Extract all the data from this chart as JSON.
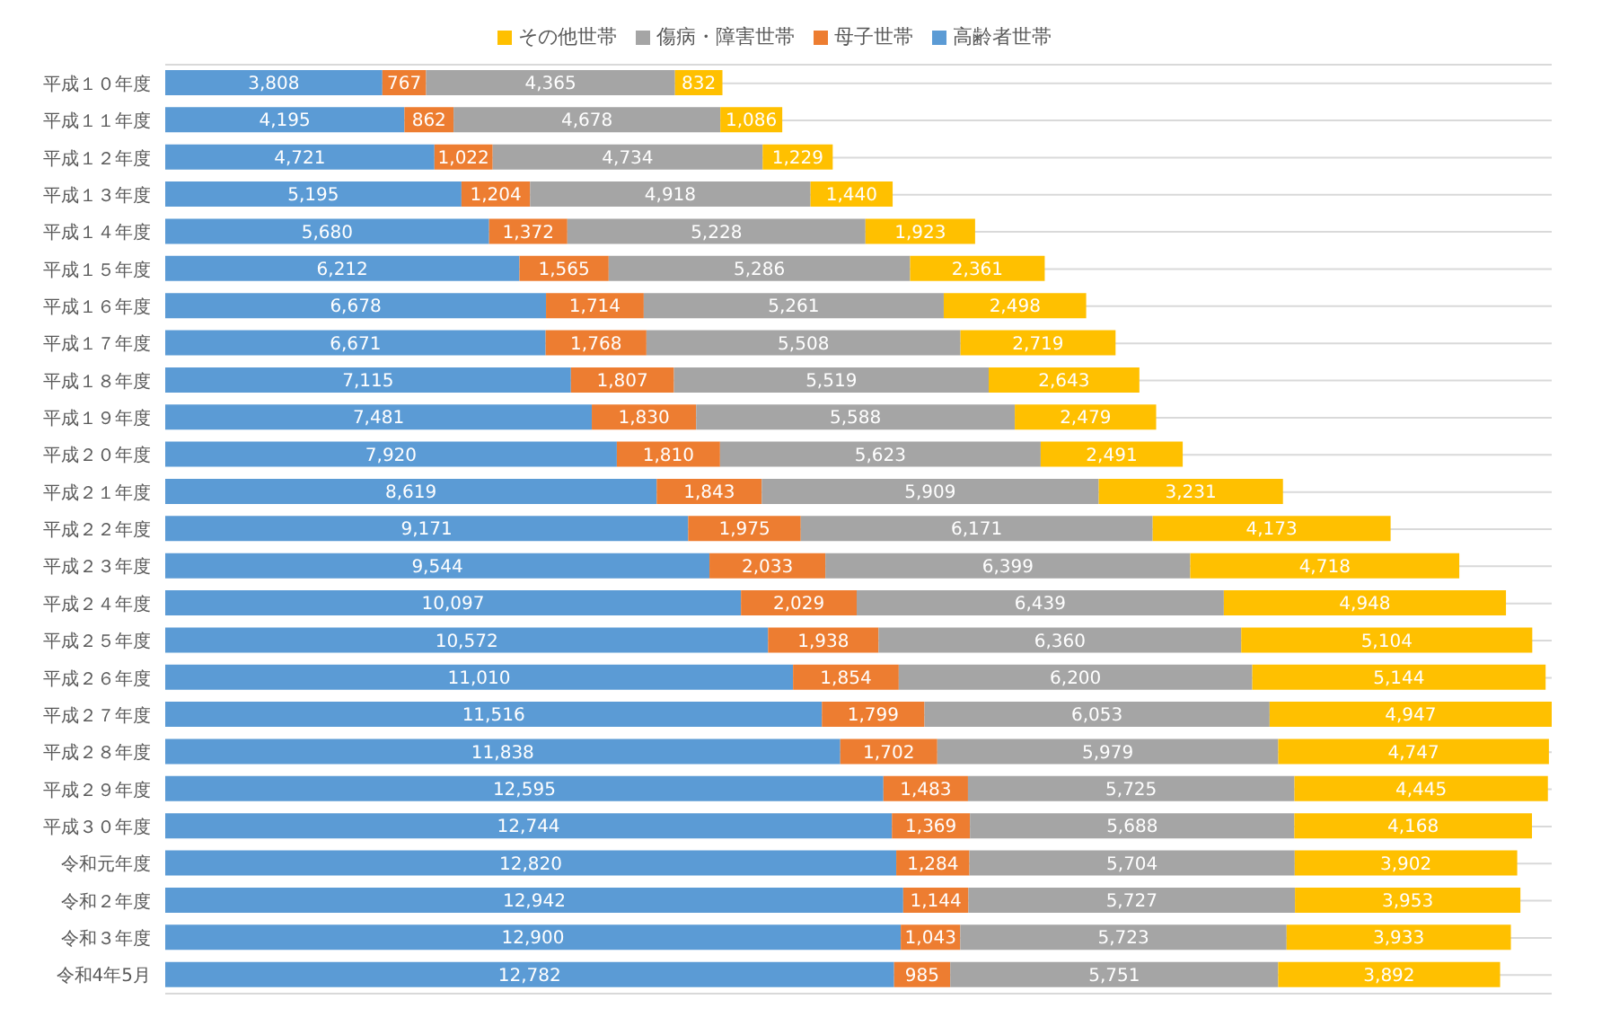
{
  "chart_data": {
    "type": "bar",
    "orientation": "horizontal",
    "stacked": true,
    "grid": "y",
    "legend": "top",
    "categories": [
      "平成１０年度",
      "平成１１年度",
      "平成１２年度",
      "平成１３年度",
      "平成１４年度",
      "平成１５年度",
      "平成１６年度",
      "平成１７年度",
      "平成１８年度",
      "平成１９年度",
      "平成２０年度",
      "平成２１年度",
      "平成２２年度",
      "平成２３年度",
      "平成２４年度",
      "平成２５年度",
      "平成２６年度",
      "平成２７年度",
      "平成２８年度",
      "平成２９年度",
      "平成３０年度",
      "令和元年度",
      "令和２年度",
      "令和３年度",
      "令和4年5月"
    ],
    "series": [
      {
        "name": "高齢者世帯",
        "color": "#5b9bd5",
        "values": [
          3808,
          4195,
          4721,
          5195,
          5680,
          6212,
          6678,
          6671,
          7115,
          7481,
          7920,
          8619,
          9171,
          9544,
          10097,
          10572,
          11010,
          11516,
          11838,
          12595,
          12744,
          12820,
          12942,
          12900,
          12782
        ],
        "value_labels": [
          "3,808",
          "4,195",
          "4,721",
          "5,195",
          "5,680",
          "6,212",
          "6,678",
          "6,671",
          "7,115",
          "7,481",
          "7,920",
          "8,619",
          "9,171",
          "9,544",
          "10,097",
          "10,572",
          "11,010",
          "11,516",
          "11,838",
          "12,595",
          "12,744",
          "12,820",
          "12,942",
          "12,900",
          "12,782"
        ]
      },
      {
        "name": "母子世帯",
        "color": "#ed7d31",
        "values": [
          767,
          862,
          1022,
          1204,
          1372,
          1565,
          1714,
          1768,
          1807,
          1830,
          1810,
          1843,
          1975,
          2033,
          2029,
          1938,
          1854,
          1799,
          1702,
          1483,
          1369,
          1284,
          1144,
          1043,
          985
        ],
        "value_labels": [
          "767",
          "862",
          "1,022",
          "1,204",
          "1,372",
          "1,565",
          "1,714",
          "1,768",
          "1,807",
          "1,830",
          "1,810",
          "1,843",
          "1,975",
          "2,033",
          "2,029",
          "1,938",
          "1,854",
          "1,799",
          "1,702",
          "1,483",
          "1,369",
          "1,284",
          "1,144",
          "1,043",
          "985"
        ]
      },
      {
        "name": "傷病・障害世帯",
        "color": "#a5a5a5",
        "values": [
          4365,
          4678,
          4734,
          4918,
          5228,
          5286,
          5261,
          5508,
          5519,
          5588,
          5623,
          5909,
          6171,
          6399,
          6439,
          6360,
          6200,
          6053,
          5979,
          5725,
          5688,
          5704,
          5727,
          5723,
          5751
        ],
        "value_labels": [
          "4,365",
          "4,678",
          "4,734",
          "4,918",
          "5,228",
          "5,286",
          "5,261",
          "5,508",
          "5,519",
          "5,588",
          "5,623",
          "5,909",
          "6,171",
          "6,399",
          "6,439",
          "6,360",
          "6,200",
          "6,053",
          "5,979",
          "5,725",
          "5,688",
          "5,704",
          "5,727",
          "5,723",
          "5,751"
        ]
      },
      {
        "name": "その他世帯",
        "color": "#ffc000",
        "values": [
          832,
          1086,
          1229,
          1440,
          1923,
          2361,
          2498,
          2719,
          2643,
          2479,
          2491,
          3231,
          4173,
          4718,
          4948,
          5104,
          5144,
          4947,
          4747,
          4445,
          4168,
          3902,
          3953,
          3933,
          3892
        ],
        "value_labels": [
          "832",
          "1,086",
          "1,229",
          "1,440",
          "1,923",
          "2,361",
          "2,498",
          "2,719",
          "2,643",
          "2,479",
          "2,491",
          "3,231",
          "4,173",
          "4,718",
          "4,948",
          "5,104",
          "5,144",
          "4,947",
          "4,747",
          "4,445",
          "4,168",
          "3,902",
          "3,953",
          "3,933",
          "3,892"
        ]
      }
    ]
  }
}
